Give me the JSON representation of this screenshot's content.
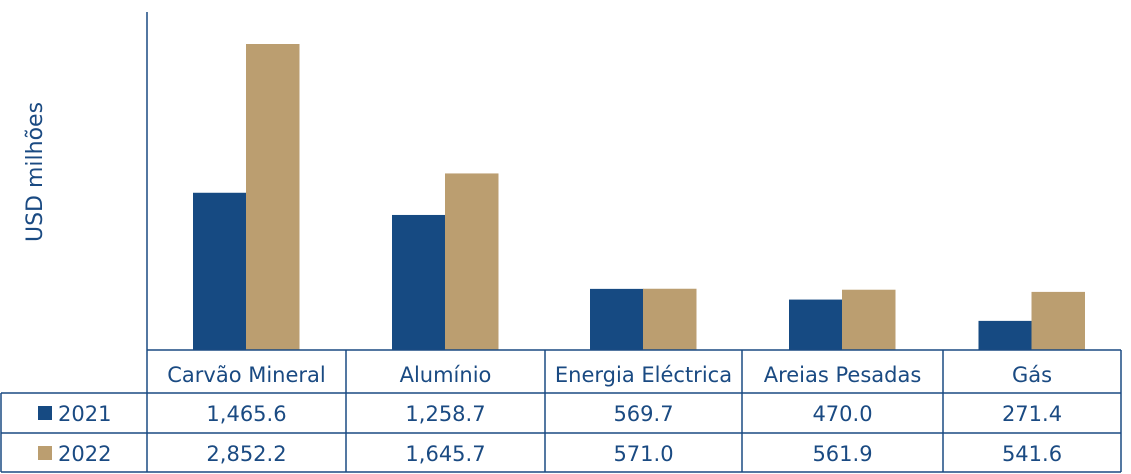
{
  "chart_data": {
    "type": "bar",
    "ylabel": "USD milhões",
    "categories": [
      "Carvão Mineral",
      "Alumínio",
      "Energia Eléctrica",
      "Areias Pesadas",
      "Gás"
    ],
    "series": [
      {
        "name": "2021",
        "color": "#164a82",
        "values": [
          1465.6,
          1258.7,
          569.7,
          470.0,
          271.4
        ],
        "labels": [
          "1,465.6",
          "1,258.7",
          "569.7",
          "470.0",
          "271.4"
        ]
      },
      {
        "name": "2022",
        "color": "#bb9e70",
        "values": [
          2852.2,
          1645.7,
          571.0,
          561.9,
          541.6
        ],
        "labels": [
          "2,852.2",
          "1,645.7",
          "571.0",
          "561.9",
          "541.6"
        ]
      }
    ],
    "ylim": [
      0,
      2852.2
    ],
    "grid": false,
    "legend": "data-table"
  }
}
